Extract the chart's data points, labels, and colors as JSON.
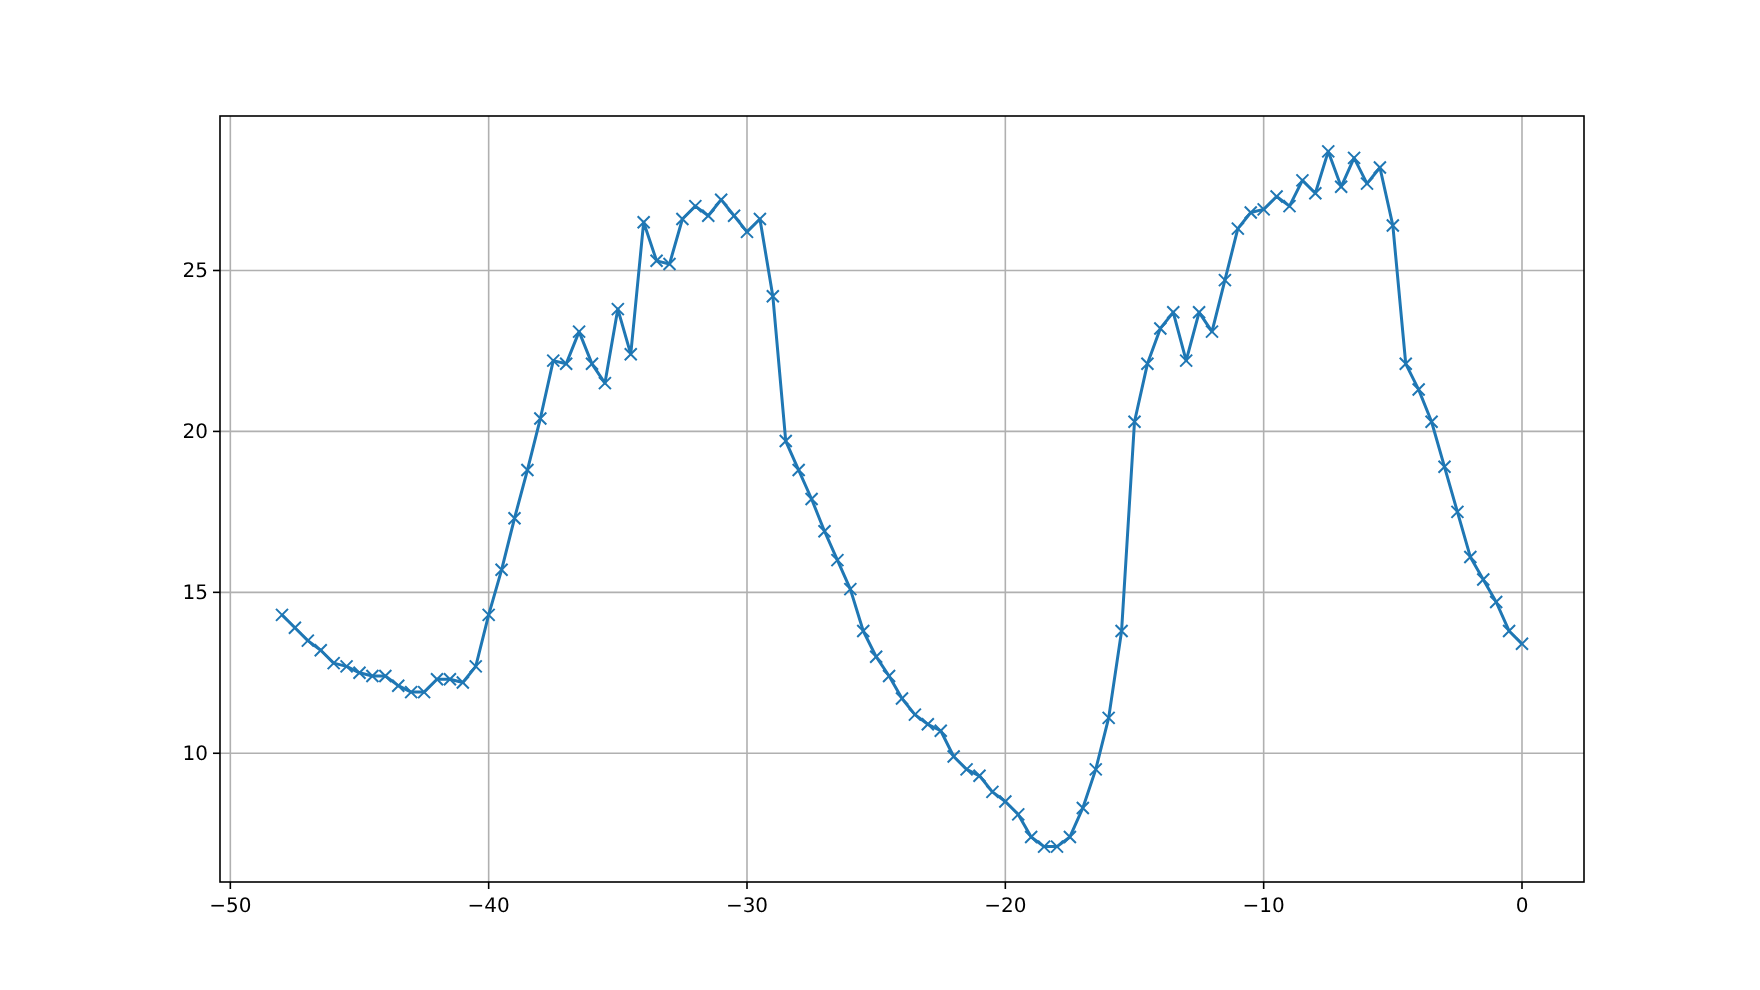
{
  "chart_data": {
    "type": "line",
    "grid": true,
    "marker": "cross",
    "line_style": "solid",
    "xlim": [
      -50.4,
      2.4
    ],
    "ylim": [
      6.0,
      29.8
    ],
    "xticks": [
      {
        "value": -50,
        "label": "−50"
      },
      {
        "value": -40,
        "label": "−40"
      },
      {
        "value": -30,
        "label": "−30"
      },
      {
        "value": -20,
        "label": "−20"
      },
      {
        "value": -10,
        "label": "−10"
      },
      0
    ],
    "yticks": [
      10,
      15,
      20,
      25
    ],
    "x": [
      -48,
      -47.5,
      -47,
      -46.5,
      -46,
      -45.5,
      -45,
      -44.5,
      -44,
      -43.5,
      -43,
      -42.5,
      -42,
      -41.5,
      -41,
      -40.5,
      -40,
      -39.5,
      -39,
      -38.5,
      -38,
      -37.5,
      -37,
      -36.5,
      -36,
      -35.5,
      -35,
      -34.5,
      -34,
      -33.5,
      -33,
      -32.5,
      -32,
      -31.5,
      -31,
      -30.5,
      -30,
      -29.5,
      -29,
      -28.5,
      -28,
      -27.5,
      -27,
      -26.5,
      -26,
      -25.5,
      -25,
      -24.5,
      -24,
      -23.5,
      -23,
      -22.5,
      -22,
      -21.5,
      -21,
      -20.5,
      -20,
      -19.5,
      -19,
      -18.5,
      -18,
      -17.5,
      -17,
      -16.5,
      -16,
      -15.5,
      -15,
      -14.5,
      -14,
      -13.5,
      -13,
      -12.5,
      -12,
      -11.5,
      -11,
      -10.5,
      -10,
      -9.5,
      -9,
      -8.5,
      -8,
      -7.5,
      -7,
      -6.5,
      -6,
      -5.5,
      -5,
      -4.5,
      -4,
      -3.5,
      -3,
      -2.5,
      -2,
      -1.5,
      -1,
      -0.5,
      0
    ],
    "series": [
      {
        "color": "#1f77b4",
        "values": [
          14.3,
          13.9,
          13.5,
          13.2,
          12.8,
          12.7,
          12.5,
          12.4,
          12.4,
          12.1,
          11.9,
          11.9,
          12.3,
          12.3,
          12.2,
          12.7,
          14.3,
          15.7,
          17.3,
          18.8,
          20.4,
          22.2,
          22.1,
          23.1,
          22.1,
          21.5,
          23.8,
          22.4,
          26.5,
          25.3,
          25.2,
          26.6,
          27.0,
          26.7,
          27.2,
          26.7,
          26.2,
          26.6,
          24.2,
          19.7,
          18.8,
          17.9,
          16.9,
          16.0,
          15.1,
          13.8,
          13.0,
          12.4,
          11.7,
          11.2,
          10.9,
          10.7,
          9.9,
          9.5,
          9.3,
          8.8,
          8.5,
          8.1,
          7.4,
          7.1,
          7.1,
          7.4,
          8.3,
          9.5,
          11.1,
          13.8,
          20.3,
          22.1,
          23.2,
          23.7,
          22.2,
          23.7,
          23.1,
          24.7,
          26.3,
          26.8,
          26.9,
          27.3,
          27.0,
          27.8,
          27.4,
          28.7,
          27.6,
          28.5,
          27.7,
          28.2,
          26.4,
          22.1,
          21.3,
          20.3,
          18.9,
          17.5,
          16.1,
          15.4,
          14.7,
          13.8,
          13.4
        ]
      }
    ]
  }
}
